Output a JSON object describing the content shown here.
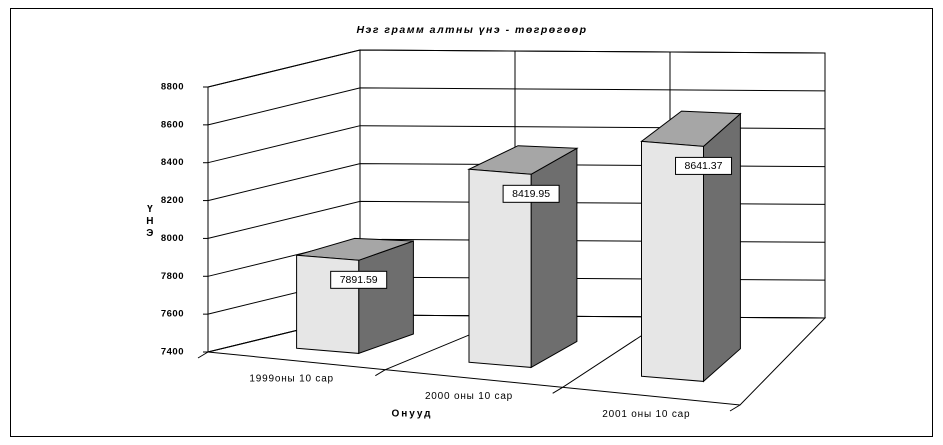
{
  "chart_data": {
    "type": "bar3d",
    "title": "Нэг грамм алтны үнэ - төгрөгөөр",
    "ylabel": "ҮНЭ",
    "xlabel": "Онууд",
    "categories": [
      "1999оны 10 сар",
      "2000 оны 10 сар",
      "2001 оны 10 сар"
    ],
    "values": [
      7891.59,
      8419.95,
      8641.37
    ],
    "colors": {
      "front": "#e6e6e6",
      "top": "#a6a6a6",
      "side": "#6e6e6e"
    },
    "ylim": [
      7400,
      8800
    ],
    "yticks": [
      7400,
      7600,
      7800,
      8000,
      8200,
      8400,
      8600,
      8800
    ],
    "grid": true
  }
}
